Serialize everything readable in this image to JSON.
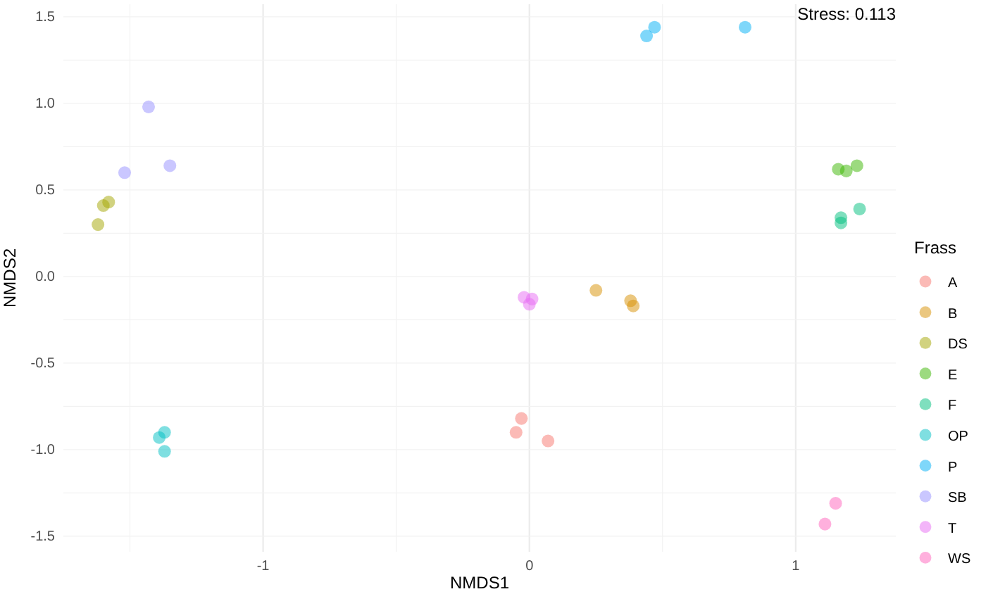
{
  "chart_data": {
    "type": "scatter",
    "xlabel": "NMDS1",
    "ylabel": "NMDS2",
    "legend_title": "Frass",
    "legend": "right",
    "grid": true,
    "marker": "circle",
    "annotations": [
      "Stress: 0.113"
    ],
    "xlim": [
      -1.75,
      1.376
    ],
    "ylim": [
      -1.59,
      1.573
    ],
    "xticks": [
      {
        "value": -1.5,
        "label": null
      },
      -1,
      {
        "value": -0.5,
        "label": null
      },
      0,
      {
        "value": 0.5,
        "label": null
      },
      1
    ],
    "yticks": [
      {
        "value": -1.5,
        "label": "-1.5"
      },
      {
        "value": -1.25,
        "label": null
      },
      {
        "value": -1,
        "label": "-1.0"
      },
      {
        "value": -0.75,
        "label": null
      },
      {
        "value": -0.5,
        "label": "-0.5"
      },
      {
        "value": -0.25,
        "label": null
      },
      {
        "value": 0,
        "label": "0.0"
      },
      {
        "value": 0.25,
        "label": null
      },
      {
        "value": 0.5,
        "label": "0.5"
      },
      {
        "value": 0.75,
        "label": null
      },
      {
        "value": 1,
        "label": "1.0"
      },
      {
        "value": 1.25,
        "label": null
      },
      {
        "value": 1.5,
        "label": "1.5"
      }
    ],
    "series": [
      {
        "name": "A",
        "color": "#f8766d",
        "x": [
          -0.03,
          -0.05,
          0.07
        ],
        "values": [
          -0.82,
          -0.9,
          -0.95
        ]
      },
      {
        "name": "B",
        "color": "#d89000",
        "x": [
          0.25,
          0.38,
          0.39
        ],
        "values": [
          -0.08,
          -0.14,
          -0.17
        ]
      },
      {
        "name": "DS",
        "color": "#a3a500",
        "x": [
          -1.58,
          -1.6,
          -1.62
        ],
        "values": [
          0.43,
          0.41,
          0.3
        ]
      },
      {
        "name": "E",
        "color": "#39b600",
        "x": [
          1.16,
          1.19,
          1.23
        ],
        "values": [
          0.62,
          0.61,
          0.64
        ]
      },
      {
        "name": "F",
        "color": "#00bf7d",
        "x": [
          1.17,
          1.17,
          1.24
        ],
        "values": [
          0.34,
          0.31,
          0.39
        ]
      },
      {
        "name": "OP",
        "color": "#00bfc4",
        "x": [
          -1.37,
          -1.39,
          -1.37
        ],
        "values": [
          -0.9,
          -0.93,
          -1.01
        ]
      },
      {
        "name": "P",
        "color": "#00b0f6",
        "x": [
          0.47,
          0.44,
          0.81
        ],
        "values": [
          1.44,
          1.39,
          1.44
        ]
      },
      {
        "name": "SB",
        "color": "#9590ff",
        "x": [
          -1.43,
          -1.52,
          -1.35
        ],
        "values": [
          0.98,
          0.6,
          0.64
        ]
      },
      {
        "name": "T",
        "color": "#e76bf3",
        "x": [
          -0.02,
          0.01,
          0.0
        ],
        "values": [
          -0.12,
          -0.13,
          -0.16
        ]
      },
      {
        "name": "WS",
        "color": "#ff62bc",
        "x": [
          1.15,
          1.11
        ],
        "values": [
          -1.31,
          -1.43
        ]
      }
    ]
  }
}
